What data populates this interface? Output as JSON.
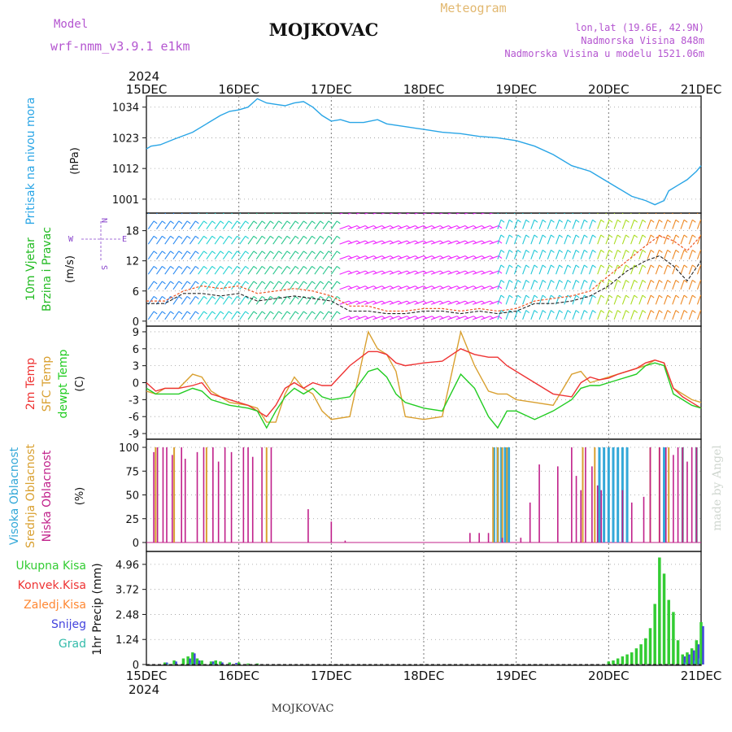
{
  "header": {
    "model_label": "Model",
    "model_name": "wrf-nmm_v3.9.1  e1km",
    "location": "MOJKOVAC",
    "meteogram": "Meteogram",
    "lonlat": "lon,lat (19.6E, 42.9N)",
    "elevation": "Nadmorska Visina 848m",
    "model_elevation": "Nadmorska Visina u modelu 1521.06m"
  },
  "time_axis": {
    "year": "2024",
    "labels": [
      "15DEC",
      "16DEC",
      "17DEC",
      "18DEC",
      "19DEC",
      "20DEC",
      "21DEC"
    ]
  },
  "footer": {
    "location": "MOJKOVAC",
    "credit": "made by Angel"
  },
  "colors": {
    "pressure": "#29a5e6",
    "temp2m": "#ee3333",
    "sfc": "#d9a030",
    "dew": "#22cc22",
    "high": "#33a8d8",
    "mid": "#d9a030",
    "low": "#c0208a",
    "precip": "#33cc33",
    "conv": "#ee3333",
    "frozen": "#ff8833",
    "snow": "#4444dd",
    "hail": "#33bbaa"
  },
  "chart_data": [
    {
      "id": "pressure",
      "type": "line",
      "ylabel_main": "Pritisak na nivou mora",
      "ylabel_unit": "(hPa)",
      "yticks": [
        "1001",
        "1012",
        "1023",
        "1034"
      ],
      "ylim": [
        996,
        1038
      ],
      "x_days": [
        0,
        0.05,
        0.15,
        0.3,
        0.5,
        0.65,
        0.8,
        0.9,
        1.0,
        1.1,
        1.2,
        1.3,
        1.4,
        1.5,
        1.6,
        1.7,
        1.8,
        1.9,
        2.0,
        2.1,
        2.2,
        2.35,
        2.5,
        2.6,
        2.8,
        3.0,
        3.2,
        3.4,
        3.6,
        3.8,
        4.0,
        4.2,
        4.4,
        4.6,
        4.8,
        4.95,
        5.1,
        5.25,
        5.4,
        5.5,
        5.6,
        5.65,
        5.75,
        5.85,
        5.95,
        6.0
      ],
      "values": [
        1019,
        1020,
        1020.5,
        1022.5,
        1025,
        1028,
        1031,
        1032.5,
        1033,
        1034,
        1037,
        1035.5,
        1035,
        1034.5,
        1035.5,
        1036,
        1034,
        1031,
        1029,
        1029.5,
        1028.5,
        1028.5,
        1029.5,
        1028,
        1027,
        1026,
        1025,
        1024.5,
        1023.5,
        1023,
        1022,
        1020,
        1017,
        1013,
        1011,
        1008,
        1005,
        1002,
        1000.5,
        999,
        1000.5,
        1004,
        1006,
        1008,
        1011,
        1013
      ]
    },
    {
      "id": "wind",
      "type": "line",
      "ylabel_main": "10m Vjetar",
      "ylabel_sub": "Brzina i Pravac",
      "ylabel_unit": "(m/s)",
      "compass": {
        "n": "N",
        "s": "S",
        "w": "W",
        "e": "E"
      },
      "yticks": [
        "0",
        "6",
        "12",
        "18"
      ],
      "ylim": [
        -1,
        21.5
      ],
      "x_days": [
        0,
        0.2,
        0.4,
        0.6,
        0.8,
        1.0,
        1.2,
        1.4,
        1.6,
        1.8,
        2.0,
        2.2,
        2.4,
        2.6,
        2.8,
        3.0,
        3.2,
        3.4,
        3.6,
        3.8,
        4.0,
        4.2,
        4.4,
        4.6,
        4.8,
        5.0,
        5.2,
        5.4,
        5.55,
        5.7,
        5.85,
        6.0
      ],
      "speed": [
        3.5,
        3.5,
        5.5,
        5.5,
        5,
        5.5,
        4,
        4.5,
        5,
        4.5,
        4,
        2,
        2,
        1.5,
        1.5,
        2,
        2,
        1.5,
        2,
        1.5,
        2,
        3.5,
        3.5,
        4,
        5,
        7,
        10,
        12,
        13,
        11,
        8,
        12
      ],
      "gust": [
        4,
        4,
        6,
        7,
        6.5,
        7,
        5.5,
        6,
        6.5,
        6,
        5,
        3,
        3,
        2,
        2,
        2.5,
        2.5,
        2,
        2.5,
        2,
        2.5,
        4,
        4.5,
        5,
        6,
        9,
        12,
        15,
        17,
        16,
        14,
        17
      ],
      "barb_color_stops": [
        [
          "0.0",
          "#2a8af2"
        ],
        [
          "0.08",
          "#22d2d2"
        ],
        [
          "0.18",
          "#26c68c"
        ],
        [
          "0.34",
          "#ee22ff"
        ],
        [
          "0.62",
          "#22c8d8"
        ],
        [
          "0.8",
          "#aadd22"
        ],
        [
          "0.9",
          "#ee8822"
        ],
        [
          "1.0",
          "#22cc44"
        ]
      ]
    },
    {
      "id": "temperature",
      "type": "line",
      "ylabel_a": "2m Temp",
      "ylabel_b": "SFC Temp",
      "ylabel_c": "dewpt Temp",
      "ylabel_unit": "(C)",
      "yticks": [
        "-9",
        "-6",
        "-3",
        "0",
        "3",
        "6",
        "9"
      ],
      "ylim": [
        -10,
        10
      ],
      "x_days": [
        0,
        0.1,
        0.2,
        0.35,
        0.5,
        0.6,
        0.7,
        0.9,
        1.1,
        1.2,
        1.3,
        1.4,
        1.5,
        1.6,
        1.7,
        1.8,
        1.9,
        2.0,
        2.2,
        2.4,
        2.5,
        2.6,
        2.7,
        2.8,
        3.0,
        3.2,
        3.4,
        3.55,
        3.7,
        3.8,
        3.9,
        4.0,
        4.2,
        4.4,
        4.6,
        4.7,
        4.8,
        4.9,
        5.0,
        5.1,
        5.2,
        5.3,
        5.4,
        5.5,
        5.6,
        5.7,
        5.8,
        5.9,
        6.0
      ],
      "temp2m": [
        0,
        -1.5,
        -1,
        -1,
        -0.5,
        0,
        -2,
        -3,
        -4,
        -5,
        -6,
        -4,
        -1,
        0,
        -1,
        0,
        -0.5,
        -0.5,
        3,
        5.5,
        5.5,
        5,
        3.5,
        3,
        3.5,
        3.8,
        6,
        5,
        4.5,
        4.5,
        3,
        2,
        0,
        -2,
        -2.5,
        0,
        1,
        0.5,
        0.8,
        1.5,
        2,
        2.5,
        3.5,
        4,
        3.5,
        -1,
        -2.5,
        -3.5,
        -4.5
      ],
      "sfc": [
        -1.5,
        -2,
        -1,
        -1,
        1.5,
        1,
        -1.5,
        -3.5,
        -4,
        -4.5,
        -7,
        -7,
        -2,
        1,
        -1,
        -2,
        -5,
        -6.5,
        -6,
        9,
        6,
        5,
        2,
        -6,
        -6.5,
        -6,
        9,
        3,
        -1.5,
        -2,
        -2,
        -3,
        -3.5,
        -4,
        1.5,
        2,
        0,
        0.5,
        1,
        1.5,
        2,
        2.5,
        3,
        4,
        3.5,
        -1,
        -2,
        -3,
        -3.5
      ],
      "dew": [
        -1,
        -2,
        -2,
        -2,
        -1,
        -1.5,
        -3,
        -4,
        -4.5,
        -5,
        -8,
        -5,
        -2.5,
        -1,
        -2,
        -1,
        -2.5,
        -3,
        -2.5,
        2,
        2.5,
        1,
        -2,
        -3.5,
        -4.5,
        -5,
        1.5,
        -1,
        -6,
        -8,
        -5,
        -5,
        -6.5,
        -5,
        -3,
        -1,
        -0.5,
        -0.5,
        0,
        0.5,
        1,
        1.5,
        3,
        3.5,
        3,
        -2,
        -3,
        -4,
        -4.5
      ]
    },
    {
      "id": "cloud",
      "type": "bar",
      "ylabel_a": "Visoka Oblacnost",
      "ylabel_b": "Srednja Oblacnost",
      "ylabel_c": "Niska Oblacnost",
      "ylabel_unit": "(%)",
      "yticks": [
        "0",
        "25",
        "50",
        "75",
        "100"
      ],
      "ylim": [
        0,
        100
      ],
      "low": {
        "x_days": [
          0.08,
          0.12,
          0.18,
          0.22,
          0.28,
          0.38,
          0.42,
          0.55,
          0.62,
          0.72,
          0.78,
          0.85,
          0.92,
          1.05,
          1.1,
          1.15,
          1.25,
          1.35,
          1.75,
          2.0,
          2.15,
          3.5,
          3.6,
          3.7,
          3.85,
          4.05,
          4.15,
          4.25,
          4.45,
          4.6,
          4.65,
          4.7,
          4.75,
          4.82,
          4.88,
          4.92,
          5.15,
          5.25,
          5.38,
          5.45,
          5.55,
          5.62,
          5.7,
          5.75,
          5.8,
          5.85,
          5.9,
          5.95
        ],
        "values": [
          95,
          100,
          100,
          100,
          92,
          100,
          88,
          95,
          100,
          100,
          85,
          100,
          95,
          100,
          100,
          90,
          100,
          100,
          35,
          22,
          2,
          10,
          10,
          10,
          5,
          5,
          42,
          82,
          80,
          100,
          70,
          55,
          100,
          80,
          60,
          55,
          55,
          42,
          48,
          100,
          100,
          100,
          92,
          100,
          100,
          85,
          100,
          100
        ]
      },
      "mid": {
        "x_days": [
          0.1,
          0.3,
          0.65,
          1.3,
          3.75,
          3.8,
          3.85,
          3.9,
          4.72,
          4.85,
          5.45,
          5.55,
          5.65,
          5.8,
          5.95
        ],
        "values": [
          100,
          100,
          100,
          100,
          100,
          100,
          100,
          100,
          100,
          100,
          100,
          100,
          100,
          100,
          100
        ]
      },
      "high": {
        "x_days": [
          3.76,
          3.8,
          3.84,
          3.88,
          3.92,
          4.9,
          4.95,
          5.0,
          5.05,
          5.1,
          5.15,
          5.2,
          5.6,
          5.8,
          5.95
        ],
        "values": [
          100,
          100,
          100,
          100,
          100,
          100,
          100,
          100,
          100,
          100,
          100,
          100,
          100,
          100,
          100
        ]
      }
    },
    {
      "id": "precip",
      "type": "bar",
      "labels": {
        "total": "Ukupna Kisa",
        "conv": "Konvek.Kisa",
        "frozen": "Zaledj.Kisa",
        "snow": "Snijeg",
        "hail": "Grad"
      },
      "ylabel": "1hr Precip (mm)",
      "yticks": [
        "0",
        "1.24",
        "2.48",
        "3.72",
        "4.96"
      ],
      "ylim": [
        0,
        5.6
      ],
      "total": {
        "x_days": [
          0.2,
          0.3,
          0.4,
          0.45,
          0.5,
          0.55,
          0.6,
          0.7,
          0.75,
          0.8,
          0.9,
          1.0,
          1.1,
          1.2,
          5.0,
          5.05,
          5.1,
          5.15,
          5.2,
          5.25,
          5.3,
          5.35,
          5.4,
          5.45,
          5.5,
          5.55,
          5.6,
          5.65,
          5.7,
          5.75,
          5.8,
          5.85,
          5.9,
          5.95,
          6.0
        ],
        "values": [
          0.1,
          0.2,
          0.3,
          0.4,
          0.6,
          0.3,
          0.2,
          0.15,
          0.2,
          0.15,
          0.1,
          0.1,
          0.05,
          0.05,
          0.15,
          0.2,
          0.3,
          0.4,
          0.5,
          0.6,
          0.8,
          1.0,
          1.3,
          1.8,
          3.0,
          5.3,
          4.5,
          3.2,
          2.6,
          1.2,
          0.5,
          0.6,
          0.8,
          1.2,
          2.1
        ]
      },
      "snow": {
        "x_days": [
          0.2,
          0.3,
          0.45,
          0.5,
          0.55,
          0.7,
          0.8,
          0.95,
          5.8,
          5.85,
          5.9,
          5.95,
          6.0
        ],
        "values": [
          0.1,
          0.15,
          0.3,
          0.55,
          0.2,
          0.15,
          0.1,
          0.08,
          0.4,
          0.5,
          0.7,
          1.0,
          1.9
        ]
      },
      "hail": {
        "x_days": [
          0.25,
          0.5,
          0.75,
          5.85,
          5.95,
          6.0
        ],
        "values": [
          0.05,
          0.1,
          0.05,
          0.1,
          0.2,
          0.3
        ]
      }
    }
  ]
}
